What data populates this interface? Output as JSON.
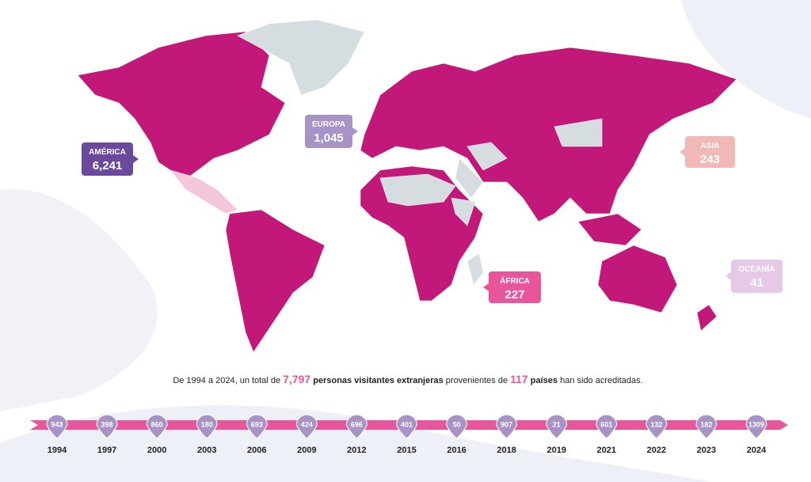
{
  "regions": [
    {
      "name": "AMÉRICA",
      "value": "6,241"
    },
    {
      "name": "EUROPA",
      "value": "1,045"
    },
    {
      "name": "ASIA",
      "value": "243"
    },
    {
      "name": "ÁFRICA",
      "value": "227"
    },
    {
      "name": "OCEANÍA",
      "value": "41"
    }
  ],
  "summary": [
    "De 1994 a 2024, un total de ",
    "7,797",
    " personas visitantes extranjeras",
    " provenientes de ",
    "117",
    " países",
    " han sido acreditadas."
  ],
  "timeline": [
    {
      "year": "1994",
      "value": 943
    },
    {
      "year": "1997",
      "value": 398
    },
    {
      "year": "2000",
      "value": 860
    },
    {
      "year": "2003",
      "value": 180
    },
    {
      "year": "2006",
      "value": 693
    },
    {
      "year": "2009",
      "value": 424
    },
    {
      "year": "2012",
      "value": 696
    },
    {
      "year": "2015",
      "value": 401
    },
    {
      "year": "2016",
      "value": 50
    },
    {
      "year": "2018",
      "value": 907
    },
    {
      "year": "2019",
      "value": 21
    },
    {
      "year": "2021",
      "value": 601
    },
    {
      "year": "2022",
      "value": 132
    },
    {
      "year": "2023",
      "value": 182
    },
    {
      "year": "2024",
      "value": 1309
    }
  ]
}
